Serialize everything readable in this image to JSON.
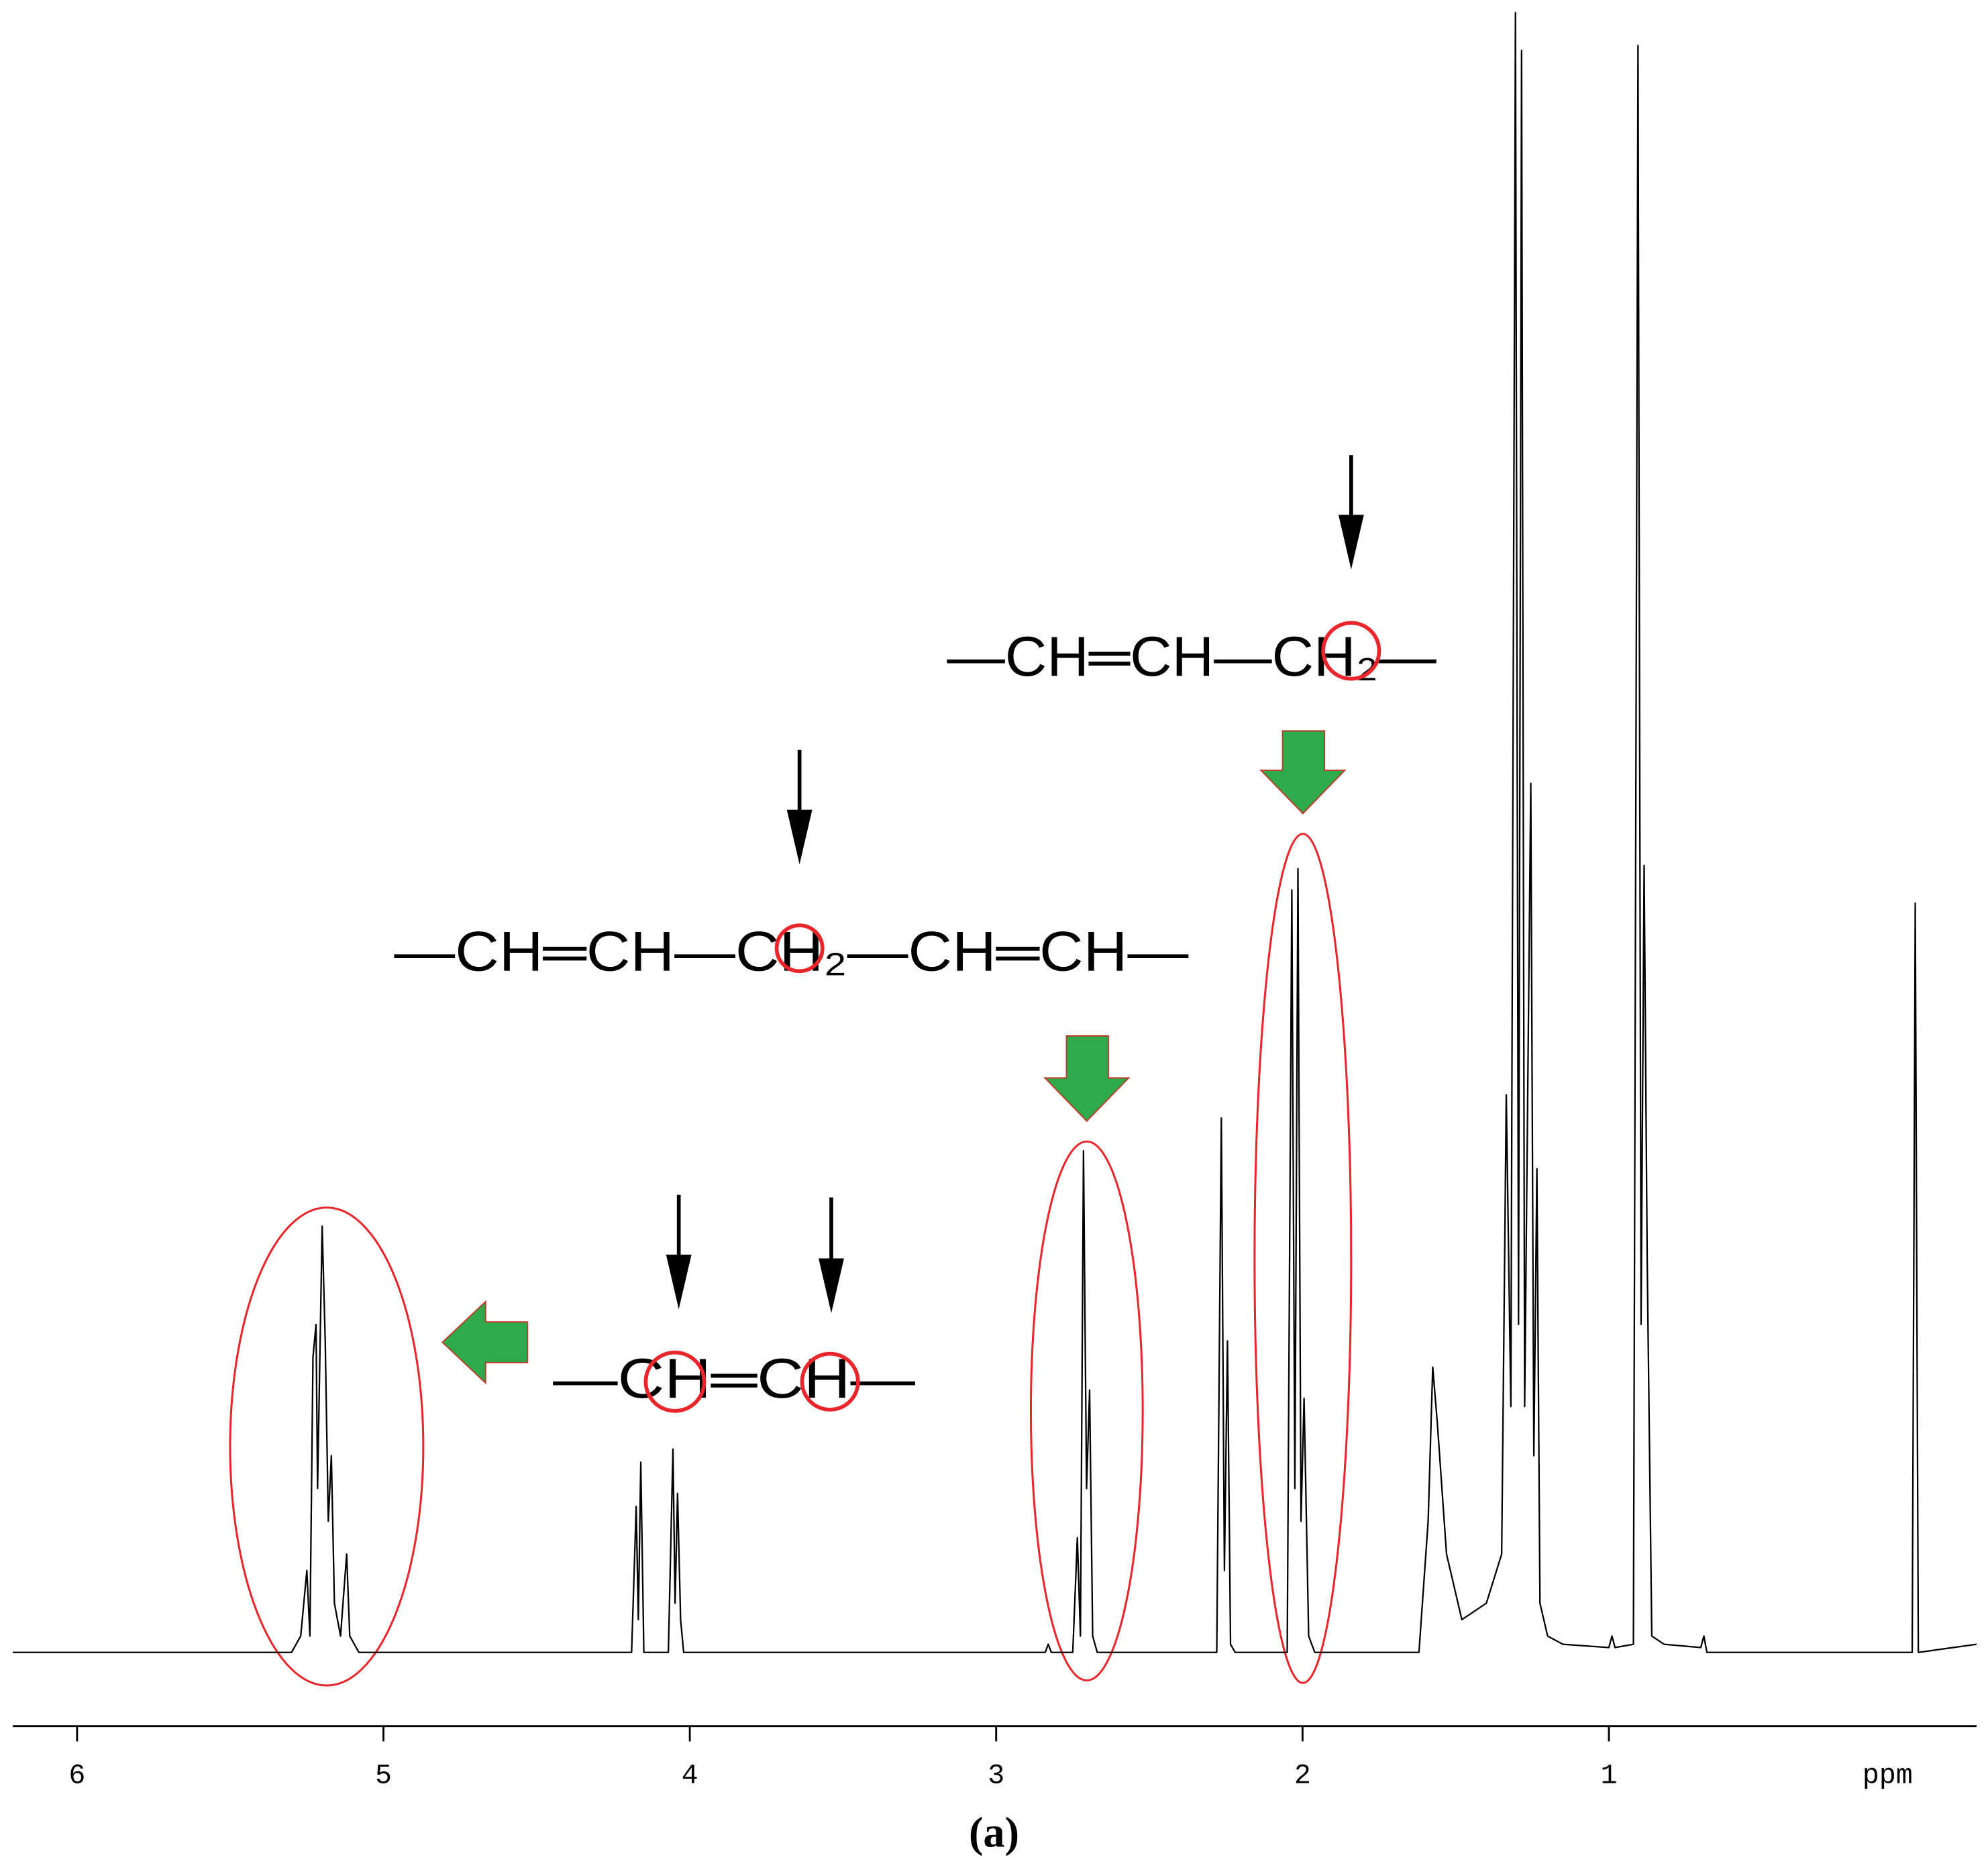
{
  "chart_data": {
    "type": "line",
    "xlabel": "ppm",
    "caption": "(a)",
    "annotations": [
      "—CH═CH—CH₂—",
      "—CH═CH—CH₂—CH═CH—",
      "—CH═CH—"
    ],
    "xlim": [
      6.21,
      -0.2
    ],
    "xticks": [
      6,
      5,
      4,
      3,
      2,
      1
    ],
    "ylim": [
      0,
      100
    ],
    "color": "#000000",
    "x": [
      6.21,
      5.3,
      5.27,
      5.25,
      5.24,
      5.23,
      5.22,
      5.215,
      5.2,
      5.19,
      5.18,
      5.17,
      5.16,
      5.14,
      5.12,
      5.11,
      5.08,
      4.19,
      4.175,
      4.168,
      4.16,
      4.15,
      4.07,
      4.055,
      4.048,
      4.04,
      4.03,
      4.02,
      2.84,
      2.83,
      2.82,
      2.75,
      2.735,
      2.725,
      2.715,
      2.705,
      2.695,
      2.685,
      2.67,
      2.28,
      2.265,
      2.255,
      2.245,
      2.235,
      2.22,
      2.05,
      2.035,
      2.025,
      2.015,
      2.005,
      1.995,
      1.98,
      1.96,
      1.62,
      1.59,
      1.575,
      1.56,
      1.53,
      1.48,
      1.4,
      1.35,
      1.335,
      1.32,
      1.305,
      1.295,
      1.285,
      1.275,
      1.255,
      1.245,
      1.235,
      1.225,
      1.2,
      1.15,
      1.0,
      0.99,
      0.98,
      0.92,
      0.905,
      0.895,
      0.885,
      0.875,
      0.86,
      0.82,
      0.7,
      0.69,
      0.68,
      0.01,
      0.0,
      -0.01,
      -0.2
    ],
    "values": [
      0,
      0,
      1,
      5,
      1,
      18,
      20,
      10,
      26,
      19,
      8,
      12,
      3,
      1,
      6,
      1,
      0,
      0,
      8.9,
      2,
      11.6,
      0,
      0,
      12.4,
      3,
      9.7,
      2,
      0,
      0,
      0.5,
      0,
      0,
      7,
      1,
      30.6,
      10,
      16,
      1,
      0,
      0,
      32.6,
      5,
      19,
      0.5,
      0,
      0,
      46.5,
      10,
      47.8,
      8,
      15.5,
      1,
      0,
      0,
      8,
      17.4,
      14,
      6,
      2,
      3,
      6,
      34,
      15,
      100,
      20,
      97.7,
      15,
      53,
      12,
      29.5,
      3,
      1,
      0.5,
      0.3,
      1,
      0.3,
      0.5,
      98,
      20,
      48,
      24,
      1,
      0.5,
      0.3,
      1,
      0,
      0,
      45.7,
      0,
      0.5
    ]
  }
}
